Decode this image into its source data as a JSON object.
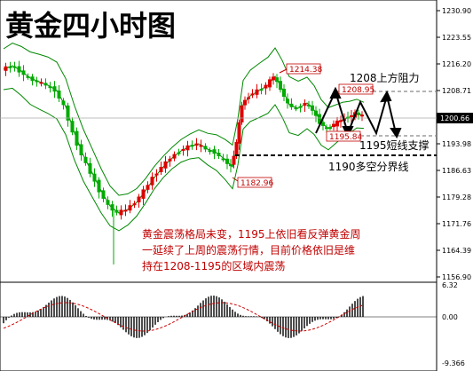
{
  "title": "黄金四小时图",
  "chart_data": {
    "type": "candlestick",
    "y_axis_ticks": [
      "1230.90",
      "1223.55",
      "1216.20",
      "1208.71",
      "1200.66",
      "1193.98",
      "1186.63",
      "1179.28",
      "1171.76",
      "1164.39",
      "1156.90"
    ],
    "current_price": "1200.66",
    "markers": {
      "high": "1214.38",
      "recent_high": "1208.95",
      "recent_low": "1195.84",
      "low": "1182.96"
    },
    "annotations": {
      "resistance": "1208上方阻力",
      "support": "1195短线支撑",
      "divider": "1190多空分界线"
    },
    "commentary": [
      "黄金震荡格局未变，1195上依旧看反弹黄金周",
      "一延续了上周的震荡行情，目前价格依旧是维",
      "持在1208-1195的区域内震荡"
    ],
    "macd_axis_ticks": [
      "6.32",
      "0.00",
      "-9.366"
    ]
  },
  "colors": {
    "up": "#dd0000",
    "down": "#00aa00",
    "band": "#008800",
    "macd_hist": "#000000",
    "signal": "#cc0000",
    "comment": "#c00000",
    "grid_dash": "#888888"
  }
}
